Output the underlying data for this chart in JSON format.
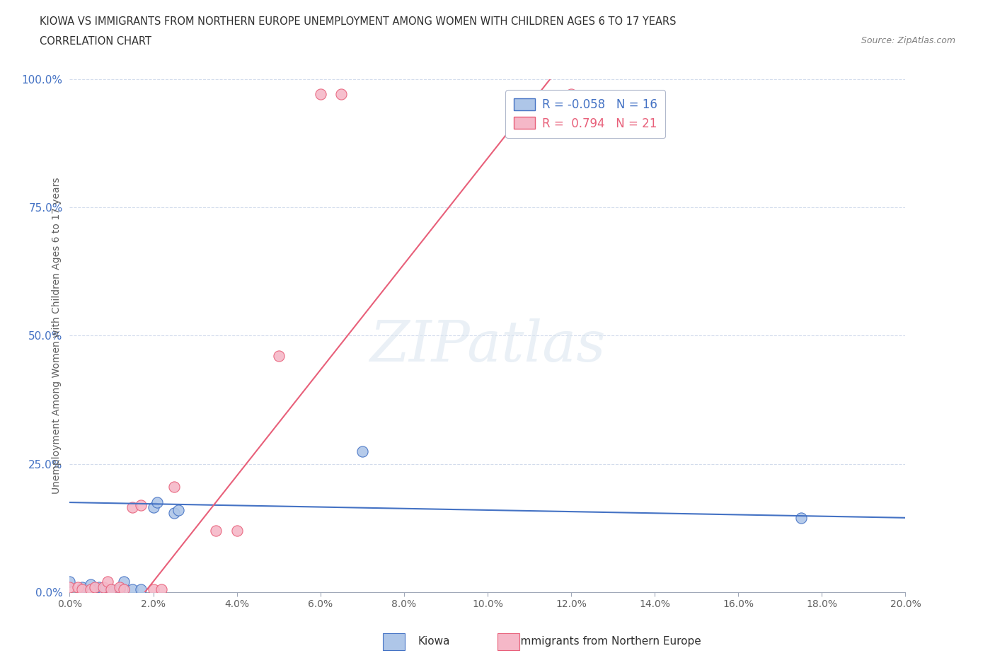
{
  "title_line1": "KIOWA VS IMMIGRANTS FROM NORTHERN EUROPE UNEMPLOYMENT AMONG WOMEN WITH CHILDREN AGES 6 TO 17 YEARS",
  "title_line2": "CORRELATION CHART",
  "source": "Source: ZipAtlas.com",
  "ylabel": "Unemployment Among Women with Children Ages 6 to 17 years",
  "xlim": [
    0.0,
    0.2
  ],
  "ylim": [
    0.0,
    1.0
  ],
  "xtick_labels": [
    "0.0%",
    "2.0%",
    "4.0%",
    "6.0%",
    "8.0%",
    "10.0%",
    "12.0%",
    "14.0%",
    "16.0%",
    "18.0%",
    "20.0%"
  ],
  "xtick_values": [
    0.0,
    0.02,
    0.04,
    0.06,
    0.08,
    0.1,
    0.12,
    0.14,
    0.16,
    0.18,
    0.2
  ],
  "ytick_labels": [
    "0.0%",
    "25.0%",
    "50.0%",
    "75.0%",
    "100.0%"
  ],
  "ytick_values": [
    0.0,
    0.25,
    0.5,
    0.75,
    1.0
  ],
  "legend_R_blue": "-0.058",
  "legend_N_blue": "16",
  "legend_R_pink": "0.794",
  "legend_N_pink": "21",
  "watermark": "ZIPatlas",
  "blue_color": "#aec6e8",
  "pink_color": "#f5b8c8",
  "blue_line_color": "#4472c4",
  "pink_line_color": "#e8607a",
  "kiowa_points": [
    [
      0.0,
      0.02
    ],
    [
      0.003,
      0.01
    ],
    [
      0.005,
      0.015
    ],
    [
      0.007,
      0.01
    ],
    [
      0.008,
      0.005
    ],
    [
      0.01,
      0.005
    ],
    [
      0.012,
      0.005
    ],
    [
      0.013,
      0.02
    ],
    [
      0.015,
      0.005
    ],
    [
      0.017,
      0.005
    ],
    [
      0.02,
      0.165
    ],
    [
      0.021,
      0.175
    ],
    [
      0.025,
      0.155
    ],
    [
      0.026,
      0.16
    ],
    [
      0.07,
      0.275
    ],
    [
      0.175,
      0.145
    ]
  ],
  "immigrant_points": [
    [
      0.0,
      0.01
    ],
    [
      0.002,
      0.01
    ],
    [
      0.003,
      0.005
    ],
    [
      0.005,
      0.005
    ],
    [
      0.006,
      0.01
    ],
    [
      0.008,
      0.01
    ],
    [
      0.009,
      0.02
    ],
    [
      0.01,
      0.005
    ],
    [
      0.012,
      0.01
    ],
    [
      0.013,
      0.005
    ],
    [
      0.015,
      0.165
    ],
    [
      0.017,
      0.17
    ],
    [
      0.02,
      0.005
    ],
    [
      0.022,
      0.005
    ],
    [
      0.025,
      0.205
    ],
    [
      0.035,
      0.12
    ],
    [
      0.04,
      0.12
    ],
    [
      0.05,
      0.46
    ],
    [
      0.06,
      0.97
    ],
    [
      0.065,
      0.97
    ],
    [
      0.12,
      0.97
    ]
  ],
  "blue_line_x": [
    0.0,
    0.2
  ],
  "blue_line_y": [
    0.175,
    0.145
  ],
  "pink_line_x1": 0.018,
  "pink_line_y1": 0.0,
  "pink_line_x2": 0.115,
  "pink_line_y2": 1.0,
  "bg_color": "#ffffff",
  "grid_color": "#c8d4e8",
  "title_color": "#303030",
  "source_color": "#808080",
  "tick_color": "#606060",
  "ytick_color": "#4472c4"
}
